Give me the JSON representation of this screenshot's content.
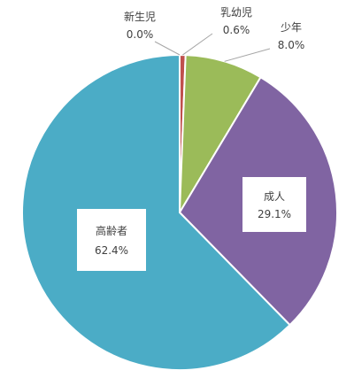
{
  "chart_data": {
    "type": "pie",
    "title": "",
    "slices": [
      {
        "label": "新生児",
        "value": 0.0,
        "value_text": "0.0%",
        "color": "#C0504D"
      },
      {
        "label": "乳幼児",
        "value": 0.6,
        "value_text": "0.6%",
        "color": "#C0504D"
      },
      {
        "label": "少年",
        "value": 8.0,
        "value_text": "8.0%",
        "color": "#9BBB59"
      },
      {
        "label": "成人",
        "value": 29.1,
        "value_text": "29.1%",
        "color": "#8064A2"
      },
      {
        "label": "高齢者",
        "value": 62.4,
        "value_text": "62.4%",
        "color": "#4BACC6"
      }
    ],
    "start_angle": "12 o'clock",
    "direction": "clockwise",
    "legend": "none"
  }
}
